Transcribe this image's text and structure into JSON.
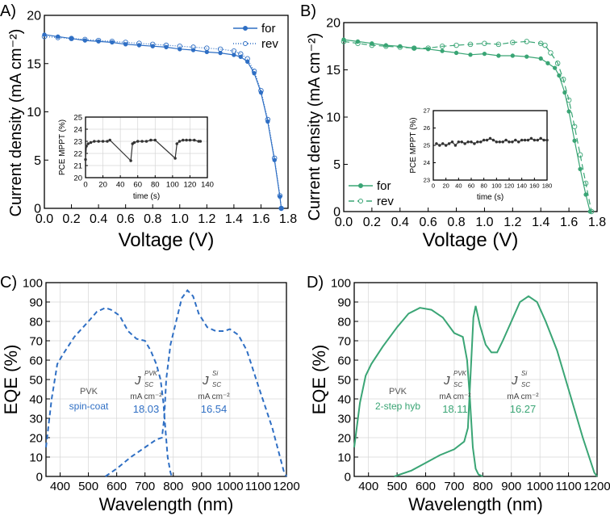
{
  "chart_data": [
    {
      "id": "A",
      "panel_label": "A)",
      "type": "line",
      "xlabel": "Voltage (V)",
      "ylabel": "Current density (mA cm⁻²)",
      "xlim": [
        0,
        1.8
      ],
      "ylim": [
        0,
        20
      ],
      "xticks": [
        0.0,
        0.2,
        0.4,
        0.6,
        0.8,
        1.0,
        1.2,
        1.4,
        1.6,
        1.8
      ],
      "yticks": [
        0,
        5,
        10,
        15,
        20
      ],
      "xdec": 1,
      "legend": "top-right",
      "color": "#2f6fc4",
      "series": [
        {
          "name": "for",
          "style": "solid-filled",
          "x": [
            0,
            0.1,
            0.2,
            0.3,
            0.4,
            0.5,
            0.6,
            0.7,
            0.8,
            0.9,
            1.0,
            1.1,
            1.2,
            1.3,
            1.4,
            1.45,
            1.5,
            1.55,
            1.6,
            1.65,
            1.7,
            1.74,
            1.75
          ],
          "y": [
            18.0,
            17.8,
            17.6,
            17.4,
            17.3,
            17.2,
            17.0,
            16.9,
            16.8,
            16.7,
            16.5,
            16.4,
            16.2,
            16.1,
            15.9,
            15.7,
            15.2,
            14.0,
            12.0,
            9.0,
            5.0,
            1.2,
            0
          ]
        },
        {
          "name": "rev",
          "style": "dotted-open",
          "x": [
            0,
            0.1,
            0.2,
            0.3,
            0.4,
            0.5,
            0.6,
            0.7,
            0.8,
            0.9,
            1.0,
            1.1,
            1.2,
            1.3,
            1.4,
            1.45,
            1.5,
            1.55,
            1.6,
            1.65,
            1.7,
            1.74,
            1.75
          ],
          "y": [
            17.8,
            17.7,
            17.6,
            17.5,
            17.4,
            17.3,
            17.2,
            17.1,
            17.0,
            16.9,
            16.8,
            16.7,
            16.6,
            16.5,
            16.3,
            16.0,
            15.5,
            14.2,
            12.2,
            9.2,
            5.2,
            1.3,
            0
          ]
        }
      ],
      "inset": {
        "xlabel": "time (s)",
        "ylabel": "PCE MPPT (%)",
        "xlim": [
          0,
          140
        ],
        "ylim": [
          20,
          25
        ],
        "xticks": [
          0,
          20,
          40,
          60,
          80,
          100,
          120,
          140
        ],
        "yticks": [
          20,
          21,
          22,
          23,
          24,
          25
        ],
        "grid": true,
        "series": [
          {
            "name": "MPPT",
            "x": [
              0,
              1,
              3,
              6,
              10,
              15,
              20,
              25,
              28,
              52,
              54,
              56,
              60,
              65,
              70,
              75,
              80,
              103,
              105,
              108,
              112,
              116,
              120,
              125,
              130,
              132
            ],
            "y": [
              21.5,
              22.6,
              22.8,
              22.9,
              23.0,
              23.0,
              23.0,
              23.0,
              23.1,
              21.4,
              22.8,
              22.9,
              23.0,
              23.0,
              23.0,
              23.1,
              23.1,
              21.6,
              22.8,
              23.0,
              23.1,
              23.1,
              23.1,
              23.1,
              23.0,
              23.0
            ]
          }
        ]
      }
    },
    {
      "id": "B",
      "panel_label": "B)",
      "type": "line",
      "xlabel": "Voltage (V)",
      "ylabel": "Current density (mA cm⁻²)",
      "xlim": [
        0,
        1.8
      ],
      "ylim": [
        0,
        20
      ],
      "xticks": [
        0.0,
        0.2,
        0.4,
        0.6,
        0.8,
        1.0,
        1.2,
        1.4,
        1.6,
        1.8
      ],
      "yticks": [
        0,
        5,
        10,
        15,
        20
      ],
      "xdec": 1,
      "legend": "bottom-left",
      "color": "#3aa575",
      "series": [
        {
          "name": "for",
          "style": "solid-filled",
          "x": [
            0,
            0.1,
            0.2,
            0.3,
            0.4,
            0.5,
            0.6,
            0.7,
            0.8,
            0.9,
            1.0,
            1.1,
            1.2,
            1.3,
            1.4,
            1.45,
            1.5,
            1.53,
            1.57,
            1.6,
            1.64,
            1.68,
            1.72,
            1.75
          ],
          "y": [
            18.2,
            18.0,
            17.8,
            17.6,
            17.5,
            17.3,
            17.2,
            17.0,
            16.8,
            16.6,
            16.7,
            16.5,
            16.5,
            16.4,
            16.2,
            15.7,
            15.2,
            14.4,
            12.6,
            10.6,
            7.5,
            4.5,
            1.8,
            0
          ]
        },
        {
          "name": "rev",
          "style": "dashed-open",
          "x": [
            0,
            0.1,
            0.2,
            0.3,
            0.4,
            0.5,
            0.6,
            0.7,
            0.8,
            0.9,
            1.0,
            1.1,
            1.2,
            1.3,
            1.4,
            1.43,
            1.47,
            1.52,
            1.56,
            1.6,
            1.64,
            1.68,
            1.72,
            1.76
          ],
          "y": [
            18.0,
            17.8,
            17.6,
            17.5,
            17.4,
            17.3,
            17.3,
            17.5,
            17.6,
            17.7,
            17.8,
            17.7,
            17.9,
            18.0,
            17.8,
            17.6,
            16.8,
            15.7,
            14.0,
            11.8,
            9.0,
            6.0,
            3.0,
            0
          ]
        }
      ],
      "inset": {
        "xlabel": "time (s)",
        "ylabel": "PCE MPPT (%)",
        "xlim": [
          0,
          180
        ],
        "ylim": [
          23,
          27
        ],
        "xticks": [
          0,
          20,
          40,
          60,
          80,
          100,
          120,
          140,
          160,
          180
        ],
        "yticks": [
          23,
          24,
          25,
          26,
          27
        ],
        "grid": false,
        "series": [
          {
            "name": "MPPT",
            "x": [
              5,
              10,
              15,
              20,
              25,
              30,
              35,
              40,
              45,
              50,
              55,
              60,
              65,
              70,
              75,
              80,
              85,
              90,
              95,
              100,
              105,
              110,
              115,
              120,
              125,
              130,
              135,
              140,
              145,
              150,
              155,
              160,
              165,
              170,
              175,
              180
            ],
            "y": [
              25.1,
              25.0,
              25.1,
              25.0,
              25.1,
              25.2,
              25.0,
              25.2,
              25.2,
              25.1,
              25.2,
              25.2,
              25.1,
              25.2,
              25.2,
              25.3,
              25.3,
              25.4,
              25.3,
              25.2,
              25.2,
              25.2,
              25.3,
              25.2,
              25.2,
              25.3,
              25.2,
              25.3,
              25.3,
              25.3,
              25.4,
              25.3,
              25.3,
              25.4,
              25.3,
              25.3
            ]
          }
        ]
      }
    },
    {
      "id": "C",
      "panel_label": "C)",
      "type": "line",
      "xlabel": "Wavelength (nm)",
      "ylabel": "EQE (%)",
      "xlim": [
        350,
        1200
      ],
      "ylim": [
        0,
        100
      ],
      "xticks": [
        400,
        500,
        600,
        700,
        800,
        900,
        1000,
        1100,
        1200
      ],
      "yticks": [
        0,
        10,
        20,
        30,
        40,
        50,
        60,
        70,
        80,
        90,
        100
      ],
      "xdec": 0,
      "grid": true,
      "color": "#2f6fc4",
      "series": [
        {
          "name": "PVK",
          "style": "dashed",
          "x": [
            350,
            370,
            390,
            410,
            450,
            500,
            530,
            560,
            580,
            610,
            640,
            670,
            700,
            720,
            740,
            755,
            765,
            772,
            780,
            790,
            795
          ],
          "y": [
            15,
            40,
            58,
            63,
            72,
            80,
            85,
            87,
            86,
            83,
            75,
            71,
            70,
            65,
            58,
            50,
            38,
            25,
            10,
            2,
            0
          ]
        },
        {
          "name": "Si",
          "style": "dashed",
          "x": [
            560,
            600,
            650,
            700,
            740,
            760,
            768,
            775,
            790,
            810,
            830,
            850,
            870,
            890,
            920,
            950,
            980,
            1000,
            1030,
            1060,
            1100,
            1150,
            1190,
            1200
          ],
          "y": [
            0,
            4,
            10,
            15,
            19,
            20,
            30,
            50,
            68,
            80,
            92,
            96,
            93,
            84,
            77,
            75,
            75,
            76,
            73,
            65,
            47,
            25,
            3,
            0
          ]
        }
      ],
      "annotations": {
        "pvk": "PVK",
        "method": "spin-coat",
        "j_pvk_sym": "J",
        "j_pvk_sub": "SC",
        "j_pvk_sup": "PVK",
        "j_pvk_unit": "mA cm⁻²",
        "j_pvk_val": "18.03",
        "j_si_sym": "J",
        "j_si_sub": "SC",
        "j_si_sup": "Si",
        "j_si_unit": "mA cm⁻²",
        "j_si_val": "16.54"
      }
    },
    {
      "id": "D",
      "panel_label": "D)",
      "type": "line",
      "xlabel": "Wavelength (nm)",
      "ylabel": "EQE (%)",
      "xlim": [
        350,
        1200
      ],
      "ylim": [
        0,
        100
      ],
      "xticks": [
        400,
        500,
        600,
        700,
        800,
        900,
        1000,
        1100,
        1200
      ],
      "yticks": [
        0,
        10,
        20,
        30,
        40,
        50,
        60,
        70,
        80,
        90,
        100
      ],
      "xdec": 0,
      "grid": true,
      "color": "#3aa575",
      "series": [
        {
          "name": "PVK",
          "style": "solid",
          "x": [
            350,
            370,
            390,
            410,
            450,
            500,
            540,
            580,
            620,
            660,
            700,
            730,
            745,
            755,
            765,
            775,
            785,
            800
          ],
          "y": [
            15,
            38,
            52,
            58,
            67,
            77,
            84,
            87,
            86,
            82,
            74,
            72,
            60,
            40,
            15,
            4,
            1,
            0
          ]
        },
        {
          "name": "Si",
          "style": "solid",
          "x": [
            490,
            550,
            600,
            650,
            700,
            735,
            748,
            758,
            767,
            775,
            790,
            810,
            830,
            850,
            870,
            900,
            930,
            960,
            990,
            1020,
            1060,
            1100,
            1150,
            1190,
            1200
          ],
          "y": [
            0,
            3,
            7,
            11,
            14,
            18,
            25,
            55,
            82,
            88,
            78,
            68,
            64,
            64,
            70,
            80,
            90,
            93,
            90,
            80,
            65,
            45,
            20,
            2,
            0
          ]
        }
      ],
      "annotations": {
        "pvk": "PVK",
        "method": "2-step hyb",
        "j_pvk_sym": "J",
        "j_pvk_sub": "SC",
        "j_pvk_sup": "PVK",
        "j_pvk_unit": "mA cm⁻²",
        "j_pvk_val": "18.11",
        "j_si_sym": "J",
        "j_si_sub": "SC",
        "j_si_sup": "Si",
        "j_si_unit": "mA cm⁻²",
        "j_si_val": "16.27"
      }
    }
  ]
}
